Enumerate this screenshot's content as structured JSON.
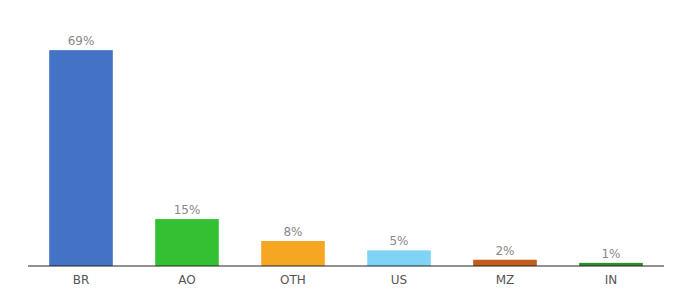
{
  "chart_data": {
    "type": "bar",
    "categories": [
      "BR",
      "AO",
      "OTH",
      "US",
      "MZ",
      "IN"
    ],
    "values": [
      69,
      15,
      8,
      5,
      2,
      1
    ],
    "value_labels": [
      "69%",
      "15%",
      "8%",
      "5%",
      "2%",
      "1%"
    ],
    "colors": [
      "#4472c4",
      "#33c133",
      "#f5a623",
      "#7fd4f5",
      "#c25e1a",
      "#2e8b2e"
    ],
    "ylim": [
      0,
      78
    ],
    "data_labels": true,
    "tick_labels": "x",
    "grid": false
  }
}
